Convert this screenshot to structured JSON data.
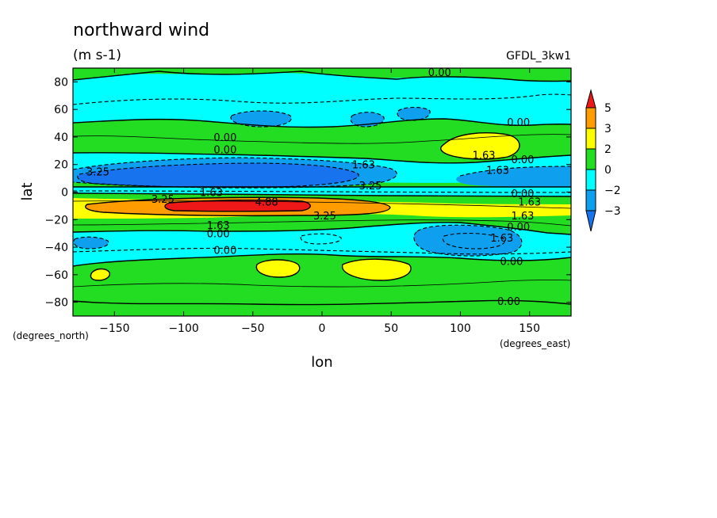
{
  "chart_data": {
    "type": "heatmap",
    "title": "northward wind",
    "subtitle": "(m s-1)",
    "dataset_label": "GFDL_3kw1",
    "xlabel": "lon",
    "ylabel": "lat",
    "x_unit": "(degrees_east)",
    "y_unit": "(degrees_north)",
    "xlim": [
      -180,
      180
    ],
    "ylim": [
      -90,
      90
    ],
    "x_ticks": [
      -150,
      -100,
      -50,
      0,
      50,
      100,
      150
    ],
    "y_ticks": [
      -80,
      -60,
      -40,
      -20,
      0,
      20,
      40,
      60,
      80
    ],
    "colorbar": {
      "levels": [
        -3,
        -2,
        0,
        2,
        3,
        5
      ],
      "labels": [
        "5",
        "3",
        "2",
        "0",
        "−2",
        "−3"
      ],
      "colors": {
        "below_-3": "#1874ee",
        "-3_to_-2": "#0ea0ee",
        "-2_to_0": "#00ffff",
        "0_to_2": "#22dd22",
        "2_to_3": "#ffff00",
        "3_to_5": "#ff9d00",
        "above_5": "#ee1818"
      }
    },
    "contour_labels": [
      {
        "text": "0.00",
        "lon": 85,
        "lat": 87
      },
      {
        "text": "0.00",
        "lon": 142,
        "lat": 51
      },
      {
        "text": "0.00",
        "lon": -70,
        "lat": 40
      },
      {
        "text": "0.00",
        "lon": -70,
        "lat": 31
      },
      {
        "text": "1.63",
        "lon": 117,
        "lat": 27
      },
      {
        "text": "0.00",
        "lon": 145,
        "lat": 24
      },
      {
        "text": "1.63",
        "lon": 30,
        "lat": 20
      },
      {
        "text": "1.63",
        "lon": 127,
        "lat": 16
      },
      {
        "text": "3.25",
        "lon": -162,
        "lat": 15
      },
      {
        "text": "3.25",
        "lon": 35,
        "lat": 5
      },
      {
        "text": "1.63",
        "lon": -80,
        "lat": 0
      },
      {
        "text": "0.00",
        "lon": 145,
        "lat": -1
      },
      {
        "text": "3.25",
        "lon": -115,
        "lat": -5
      },
      {
        "text": "1.63",
        "lon": 150,
        "lat": -7
      },
      {
        "text": "4.88",
        "lon": -40,
        "lat": -7
      },
      {
        "text": "3.25",
        "lon": 2,
        "lat": -17
      },
      {
        "text": "1.63",
        "lon": 145,
        "lat": -17
      },
      {
        "text": "0.00",
        "lon": 142,
        "lat": -25
      },
      {
        "text": "1.63",
        "lon": -75,
        "lat": -24
      },
      {
        "text": "0.00",
        "lon": -75,
        "lat": -30
      },
      {
        "text": "1.63",
        "lon": 130,
        "lat": -33
      },
      {
        "text": "0.00",
        "lon": -70,
        "lat": -42
      },
      {
        "text": "0.00",
        "lon": 137,
        "lat": -50
      },
      {
        "text": "0.00",
        "lon": 135,
        "lat": -79
      }
    ]
  }
}
